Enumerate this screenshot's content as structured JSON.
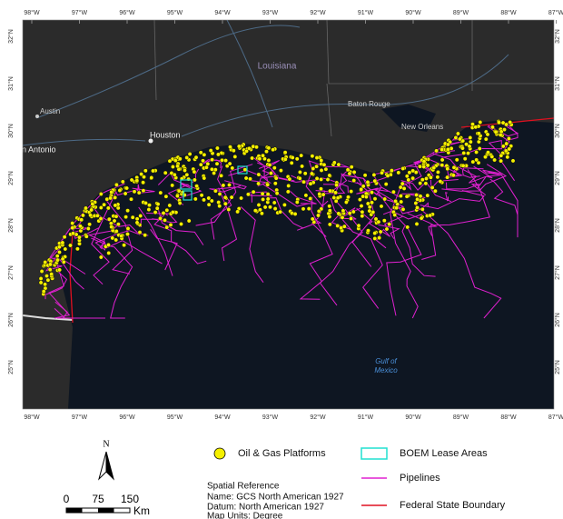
{
  "map": {
    "longitude_labels": [
      "98°W",
      "97°W",
      "96°W",
      "95°W",
      "94°W",
      "93°W",
      "92°W",
      "91°W",
      "90°W",
      "89°W",
      "88°W",
      "87°W"
    ],
    "latitude_labels": [
      "32°N",
      "31°N",
      "30°N",
      "29°N",
      "28°N",
      "27°N",
      "26°N",
      "25°N"
    ],
    "state_label": "Louisiana",
    "places": [
      {
        "label": "Austin"
      },
      {
        "label": "Baton Rouge"
      },
      {
        "label": "Houston"
      },
      {
        "label": "New Orleans"
      },
      {
        "label": "n Antonio"
      }
    ],
    "water_label": [
      "Gulf of",
      "Mexico"
    ]
  },
  "legend": {
    "platforms": "Oil & Gas Platforms",
    "lease_areas": "BOEM Lease Areas",
    "pipelines": "Pipelines",
    "boundary": "Federal State Boundary"
  },
  "spatial_reference": [
    "Spatial Reference",
    "Name: GCS North American 1927",
    "Datum: North American 1927",
    "Map Units: Degree"
  ],
  "scale_bar": {
    "north": "N",
    "labels": [
      "0",
      "75",
      "150"
    ],
    "unit": "Km"
  }
}
